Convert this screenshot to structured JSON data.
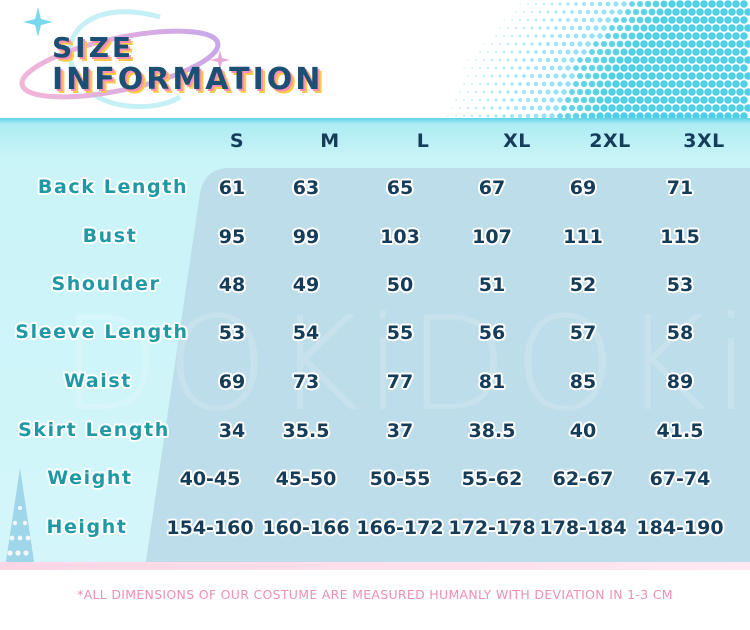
{
  "header": {
    "title_line1": "SIZE",
    "title_line2": "INFORMATION"
  },
  "colors": {
    "title": "#1b4f74",
    "title_shadow_pink": "#ff8fb1",
    "title_shadow_yellow": "#ffc94a",
    "accent_cyan": "#5dd3e6",
    "label_teal": "#1f9aa5",
    "value_navy": "#153d5a",
    "footnote_pink": "#ee8fb5"
  },
  "watermark": "DOKiDOKi",
  "table": {
    "columns": [
      "S",
      "M",
      "L",
      "XL",
      "2XL",
      "3XL"
    ],
    "rows": [
      {
        "label": "Back Length",
        "values": [
          "61",
          "63",
          "65",
          "67",
          "69",
          "71"
        ]
      },
      {
        "label": "Bust",
        "values": [
          "95",
          "99",
          "103",
          "107",
          "111",
          "115"
        ]
      },
      {
        "label": "Shoulder",
        "values": [
          "48",
          "49",
          "50",
          "51",
          "52",
          "53"
        ]
      },
      {
        "label": "Sleeve Length",
        "values": [
          "53",
          "54",
          "55",
          "56",
          "57",
          "58"
        ]
      },
      {
        "label": "Waist",
        "values": [
          "69",
          "73",
          "77",
          "81",
          "85",
          "89"
        ]
      },
      {
        "label": "Skirt Length",
        "values": [
          "34",
          "35.5",
          "37",
          "38.5",
          "40",
          "41.5"
        ]
      },
      {
        "label": "Weight",
        "values": [
          "40-45",
          "45-50",
          "50-55",
          "55-62",
          "62-67",
          "67-74"
        ]
      },
      {
        "label": "Height",
        "values": [
          "154-160",
          "160-166",
          "166-172",
          "172-178",
          "178-184",
          "184-190"
        ]
      }
    ]
  },
  "footnote": "*ALL DIMENSIONS OF OUR COSTUME ARE MEASURED HUMANLY WITH DEVIATION IN 1-3 CM"
}
